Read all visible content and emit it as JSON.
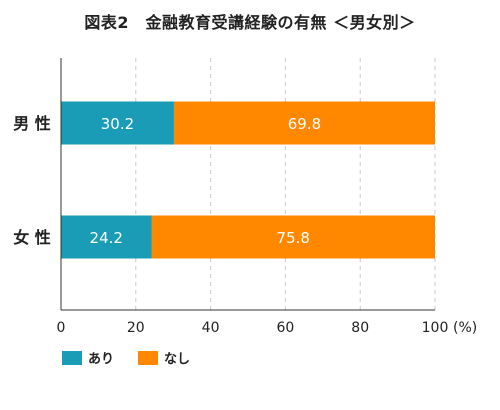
{
  "chart_data": {
    "type": "bar",
    "orientation": "horizontal",
    "stacked": true,
    "title": "図表2　金融教育受講経験の有無 ＜男女別＞",
    "categories": [
      "男 性",
      "女 性"
    ],
    "series": [
      {
        "name": "あり",
        "values": [
          30.2,
          24.2
        ],
        "color": "#1a9bb6"
      },
      {
        "name": "なし",
        "values": [
          69.8,
          75.8
        ],
        "color": "#ff8800"
      }
    ],
    "xlim": [
      0,
      100
    ],
    "xticks": [
      0,
      20,
      40,
      60,
      80,
      100
    ],
    "unit": "(%)",
    "grid": true,
    "legend": "bottom-left"
  }
}
